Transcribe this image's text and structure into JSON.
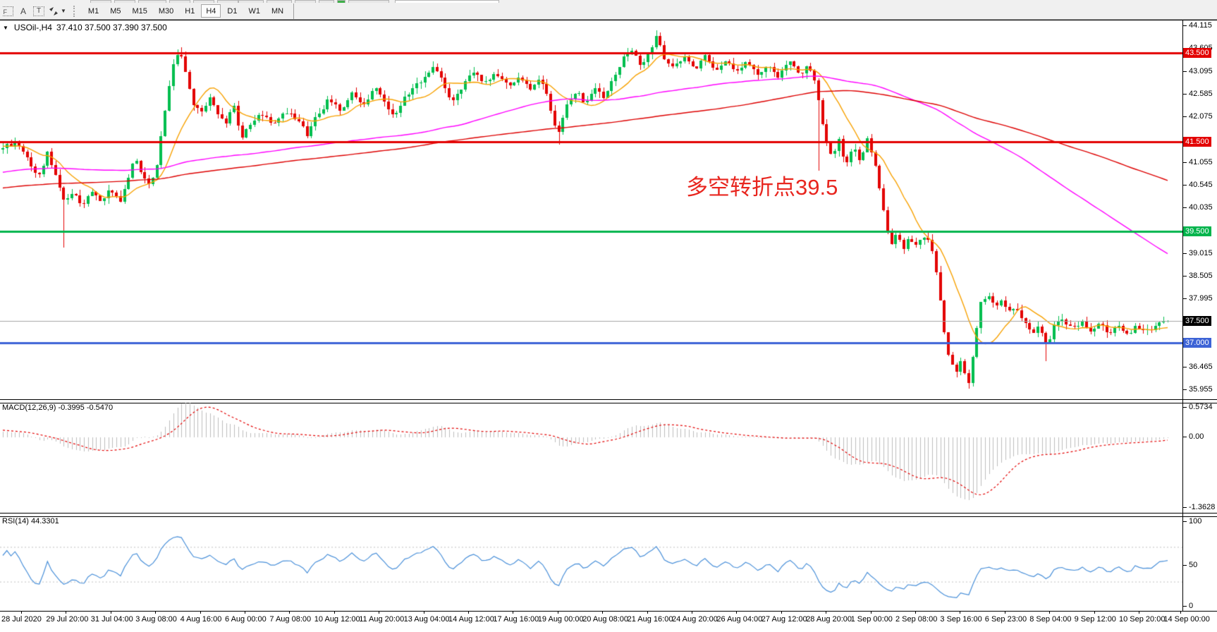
{
  "toolbar": {
    "timeframes": [
      "M1",
      "M5",
      "M15",
      "M30",
      "H1",
      "H4",
      "D1",
      "W1",
      "MN"
    ],
    "active_timeframe": "H4",
    "fibonacci_glyph": "F",
    "text_label_glyph": "A",
    "text_tool_glyph": "T"
  },
  "chart": {
    "title_symbol": "USOil-,H4",
    "title_ohlc": "37.410 37.500 37.390 37.500",
    "annotation": {
      "text": "多空转折点39.5",
      "color": "#e8261f"
    }
  },
  "macd": {
    "label": "MACD(12,26,9)",
    "values": "-0.3995 -0.5470",
    "axis": [
      "0.5734",
      "0.00",
      "-1.3628"
    ]
  },
  "rsi": {
    "label": "RSI(14)",
    "value": "44.3301",
    "axis": [
      "100",
      "50",
      "0"
    ]
  },
  "chart_data": {
    "type": "candlestick",
    "symbol": "USOil",
    "timeframe": "H4",
    "last_ohlc": {
      "open": 37.41,
      "high": 37.5,
      "low": 37.39,
      "close": 37.5
    },
    "price_range": [
      44.21,
      35.74
    ],
    "price_axis_ticks": [
      "44.115",
      "43.605",
      "43.095",
      "42.585",
      "42.075",
      "41.055",
      "40.545",
      "40.035",
      "39.015",
      "38.505",
      "37.995",
      "36.465",
      "35.955"
    ],
    "levels": [
      {
        "price": 43.5,
        "color": "#e30000",
        "width": 3,
        "label": "43.500",
        "label_bg": "#e30000"
      },
      {
        "price": 41.5,
        "color": "#e30000",
        "width": 3,
        "label": "41.500",
        "label_bg": "#e30000"
      },
      {
        "price": 39.5,
        "color": "#00b44c",
        "width": 3,
        "label": "39.500",
        "label_bg": "#00b44c"
      },
      {
        "price": 37.5,
        "color": "#a6a6a6",
        "width": 1,
        "label": "37.500",
        "label_bg": "#000000"
      },
      {
        "price": 37.0,
        "color": "#3d63d6",
        "width": 3,
        "label": "37.000",
        "label_bg": "#3d63d6"
      }
    ],
    "bar_count": 288,
    "up_color": "#00be4e",
    "down_color": "#e30000",
    "ma_lines": [
      {
        "period": 12,
        "color": "#f7a100"
      },
      {
        "period": 100,
        "color": "#ff00ff"
      },
      {
        "period": 170,
        "color": "#dd0000"
      }
    ],
    "price_path": [
      [
        0.0,
        41.35
      ],
      [
        0.01,
        41.5
      ],
      [
        0.021,
        41.15
      ],
      [
        0.03,
        40.72
      ],
      [
        0.039,
        41.28
      ],
      [
        0.047,
        40.6
      ],
      [
        0.053,
        40.18
      ],
      [
        0.06,
        40.35
      ],
      [
        0.068,
        40.08
      ],
      [
        0.076,
        40.4
      ],
      [
        0.084,
        40.12
      ],
      [
        0.092,
        40.45
      ],
      [
        0.1,
        40.15
      ],
      [
        0.107,
        40.6
      ],
      [
        0.113,
        41.18
      ],
      [
        0.12,
        40.8
      ],
      [
        0.127,
        40.55
      ],
      [
        0.133,
        41.1
      ],
      [
        0.14,
        42.3
      ],
      [
        0.147,
        43.4
      ],
      [
        0.152,
        43.58
      ],
      [
        0.157,
        43.0
      ],
      [
        0.163,
        42.4
      ],
      [
        0.17,
        42.1
      ],
      [
        0.177,
        42.5
      ],
      [
        0.184,
        42.2
      ],
      [
        0.191,
        41.9
      ],
      [
        0.198,
        42.35
      ],
      [
        0.205,
        41.6
      ],
      [
        0.213,
        41.95
      ],
      [
        0.222,
        42.15
      ],
      [
        0.232,
        41.85
      ],
      [
        0.242,
        42.25
      ],
      [
        0.252,
        42.0
      ],
      [
        0.262,
        41.65
      ],
      [
        0.27,
        42.1
      ],
      [
        0.28,
        42.45
      ],
      [
        0.29,
        42.25
      ],
      [
        0.3,
        42.6
      ],
      [
        0.31,
        42.35
      ],
      [
        0.32,
        42.7
      ],
      [
        0.328,
        42.4
      ],
      [
        0.336,
        42.0
      ],
      [
        0.345,
        42.5
      ],
      [
        0.355,
        42.75
      ],
      [
        0.365,
        43.0
      ],
      [
        0.372,
        43.2
      ],
      [
        0.38,
        42.65
      ],
      [
        0.388,
        42.4
      ],
      [
        0.396,
        42.85
      ],
      [
        0.404,
        43.1
      ],
      [
        0.414,
        42.8
      ],
      [
        0.424,
        43.05
      ],
      [
        0.434,
        42.75
      ],
      [
        0.444,
        42.95
      ],
      [
        0.454,
        42.7
      ],
      [
        0.462,
        42.9
      ],
      [
        0.47,
        42.3
      ],
      [
        0.476,
        41.65
      ],
      [
        0.484,
        42.35
      ],
      [
        0.492,
        42.65
      ],
      [
        0.5,
        42.4
      ],
      [
        0.508,
        42.75
      ],
      [
        0.516,
        42.5
      ],
      [
        0.524,
        42.9
      ],
      [
        0.532,
        43.35
      ],
      [
        0.54,
        43.55
      ],
      [
        0.548,
        43.15
      ],
      [
        0.556,
        43.5
      ],
      [
        0.562,
        43.88
      ],
      [
        0.568,
        43.35
      ],
      [
        0.576,
        43.2
      ],
      [
        0.585,
        43.45
      ],
      [
        0.594,
        43.15
      ],
      [
        0.603,
        43.4
      ],
      [
        0.612,
        43.05
      ],
      [
        0.621,
        43.3
      ],
      [
        0.63,
        43.1
      ],
      [
        0.639,
        43.35
      ],
      [
        0.648,
        43.0
      ],
      [
        0.657,
        43.25
      ],
      [
        0.666,
        42.95
      ],
      [
        0.675,
        43.3
      ],
      [
        0.684,
        43.05
      ],
      [
        0.692,
        43.2
      ],
      [
        0.697,
        42.9
      ],
      [
        0.702,
        42.2
      ],
      [
        0.707,
        41.45
      ],
      [
        0.712,
        41.15
      ],
      [
        0.718,
        41.55
      ],
      [
        0.724,
        40.95
      ],
      [
        0.73,
        41.4
      ],
      [
        0.736,
        41.05
      ],
      [
        0.742,
        41.6
      ],
      [
        0.748,
        41.15
      ],
      [
        0.753,
        40.4
      ],
      [
        0.758,
        39.65
      ],
      [
        0.763,
        39.25
      ],
      [
        0.768,
        39.5
      ],
      [
        0.773,
        39.1
      ],
      [
        0.778,
        39.35
      ],
      [
        0.784,
        39.18
      ],
      [
        0.79,
        39.42
      ],
      [
        0.796,
        39.3
      ],
      [
        0.801,
        38.7
      ],
      [
        0.806,
        37.7
      ],
      [
        0.81,
        36.95
      ],
      [
        0.814,
        36.55
      ],
      [
        0.818,
        36.3
      ],
      [
        0.822,
        36.62
      ],
      [
        0.826,
        36.25
      ],
      [
        0.83,
        36.08
      ],
      [
        0.835,
        37.15
      ],
      [
        0.84,
        37.95
      ],
      [
        0.846,
        38.1
      ],
      [
        0.852,
        37.78
      ],
      [
        0.858,
        37.98
      ],
      [
        0.864,
        37.68
      ],
      [
        0.87,
        37.85
      ],
      [
        0.877,
        37.5
      ],
      [
        0.884,
        37.2
      ],
      [
        0.89,
        37.45
      ],
      [
        0.896,
        36.95
      ],
      [
        0.902,
        37.35
      ],
      [
        0.91,
        37.55
      ],
      [
        0.918,
        37.3
      ],
      [
        0.926,
        37.5
      ],
      [
        0.934,
        37.28
      ],
      [
        0.942,
        37.45
      ],
      [
        0.95,
        37.22
      ],
      [
        0.958,
        37.42
      ],
      [
        0.966,
        37.18
      ],
      [
        0.974,
        37.38
      ],
      [
        0.982,
        37.25
      ],
      [
        0.991,
        37.42
      ],
      [
        1.0,
        37.5
      ]
    ],
    "special_wicks": [
      {
        "frac": 0.053,
        "low": 39.15
      },
      {
        "frac": 0.152,
        "high": 43.62
      },
      {
        "frac": 0.476,
        "low": 41.45
      },
      {
        "frac": 0.562,
        "high": 44.0
      },
      {
        "frac": 0.702,
        "low": 40.85
      },
      {
        "frac": 0.83,
        "low": 35.98
      },
      {
        "frac": 0.896,
        "low": 36.6
      }
    ],
    "macd_range": [
      0.66,
      -1.47
    ],
    "macd_params": [
      12,
      26,
      9
    ],
    "macd_colors": {
      "histogram": "#bdbdbd",
      "signal": "#e30000"
    },
    "rsi_period": 14,
    "rsi_color": "#4a90d9",
    "rsi_levels": [
      70,
      30
    ],
    "x_axis_ticks": [
      "28 Jul 2020",
      "29 Jul 20:00",
      "31 Jul 04:00",
      "3 Aug 08:00",
      "4 Aug 16:00",
      "6 Aug 00:00",
      "7 Aug 08:00",
      "10 Aug 12:00",
      "11 Aug 20:00",
      "13 Aug 04:00",
      "14 Aug 12:00",
      "17 Aug 16:00",
      "19 Aug 00:00",
      "20 Aug 08:00",
      "21 Aug 16:00",
      "24 Aug 20:00",
      "26 Aug 04:00",
      "27 Aug 12:00",
      "28 Aug 20:00",
      "1 Sep 00:00",
      "2 Sep 08:00",
      "3 Sep 16:00",
      "6 Sep 23:00",
      "8 Sep 04:00",
      "9 Sep 12:00",
      "10 Sep 20:00",
      "14 Sep 00:00"
    ]
  }
}
